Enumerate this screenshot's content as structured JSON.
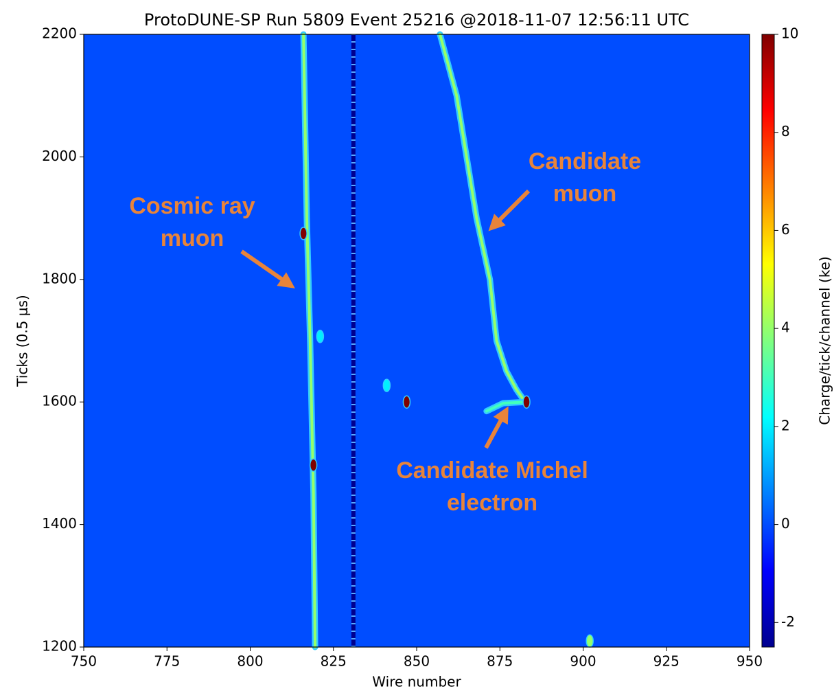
{
  "chart_data": {
    "type": "event-display",
    "title": "ProtoDUNE-SP Run 5809 Event 25216 @2018-11-07 12:56:11 UTC",
    "xlabel": "Wire number",
    "ylabel": "Ticks (0.5 μs)",
    "colorbar_label": "Charge/tick/channel (ke)",
    "xlim": [
      750,
      950
    ],
    "ylim": [
      1200,
      2200
    ],
    "xticks": [
      750,
      775,
      800,
      825,
      850,
      875,
      900,
      925,
      950
    ],
    "yticks": [
      1200,
      1400,
      1600,
      1800,
      2000,
      2200
    ],
    "clim": [
      -2.5,
      10
    ],
    "cticks": [
      -2,
      0,
      2,
      4,
      6,
      8,
      10
    ],
    "background_charge": 0,
    "tracks": [
      {
        "x": [
          816,
          817,
          818,
          819,
          819.5
        ],
        "y": [
          2200,
          1900,
          1700,
          1450,
          1200
        ],
        "charge": 4
      },
      {
        "x": [
          857,
          862,
          865,
          868,
          872,
          874,
          877,
          880,
          883
        ],
        "y": [
          2200,
          2100,
          2000,
          1900,
          1800,
          1700,
          1650,
          1620,
          1597
        ],
        "charge": 4
      },
      {
        "x": [
          871,
          876,
          883
        ],
        "y": [
          1585,
          1598,
          1600
        ],
        "charge": 3
      }
    ],
    "noisy_channel": {
      "x": [
        831,
        831
      ],
      "y": [
        1200,
        2200
      ]
    },
    "hits": {
      "x": [
        847,
        819,
        816,
        883,
        902,
        841,
        821
      ],
      "y": [
        1600,
        1497,
        1875,
        1600,
        1210,
        1627,
        1707
      ],
      "charge": [
        10,
        10,
        10,
        10,
        4,
        2,
        2
      ]
    },
    "annotations": [
      {
        "lines": [
          "Cosmic ray",
          "muon"
        ]
      },
      {
        "lines": [
          "Candidate",
          "muon"
        ]
      },
      {
        "lines": [
          "Candidate Michel",
          "electron"
        ]
      }
    ]
  }
}
